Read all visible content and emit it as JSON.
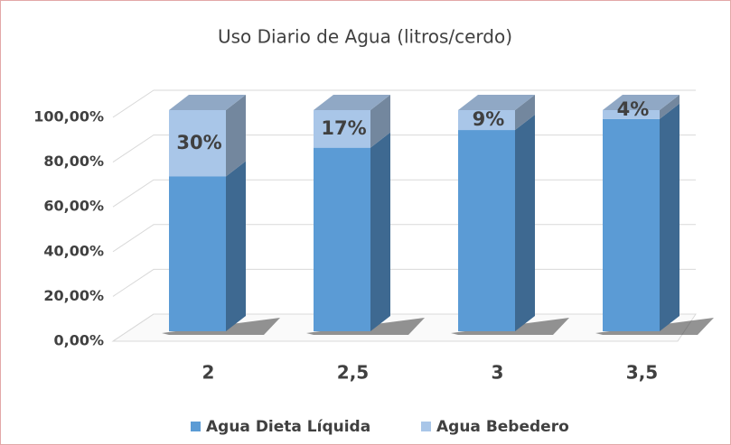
{
  "chart_data": {
    "type": "bar3d_stacked",
    "title": "Uso Diario de Agua (litros/cerdo)",
    "categories": [
      "2",
      "2,5",
      "3",
      "3,5"
    ],
    "series": [
      {
        "name": "Agua Dieta Líquida",
        "color": "#5b9bd5",
        "values": [
          70,
          83,
          91,
          96
        ]
      },
      {
        "name": "Agua Bebedero",
        "color": "#a9c6e8",
        "values": [
          30,
          17,
          9,
          4
        ],
        "value_labels": [
          "30%",
          "17%",
          "9%",
          "4%"
        ]
      }
    ],
    "ylim": [
      0,
      100
    ],
    "yticks": [
      {
        "value": 0,
        "label": "0,00%"
      },
      {
        "value": 20,
        "label": "20,00%"
      },
      {
        "value": 40,
        "label": "40,00%"
      },
      {
        "value": 60,
        "label": "60,00%"
      },
      {
        "value": 80,
        "label": "80,00%"
      },
      {
        "value": 100,
        "label": "100,00%"
      }
    ],
    "grid": true,
    "legend": "bottom"
  }
}
